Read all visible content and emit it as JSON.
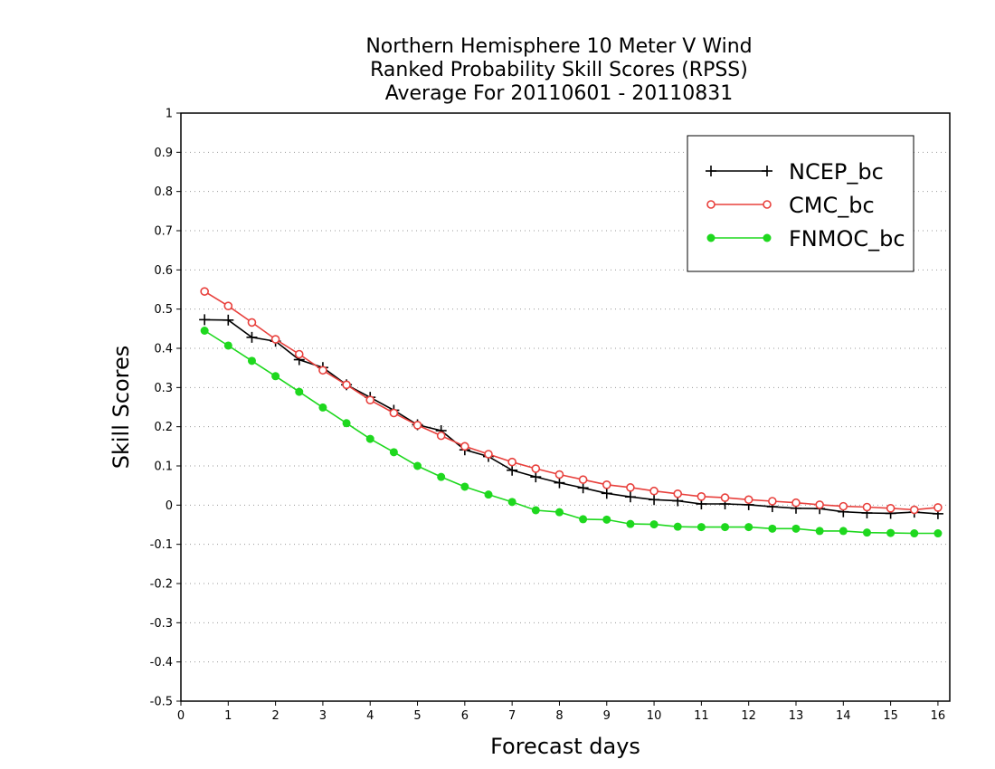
{
  "chart_data": {
    "type": "line",
    "title": [
      "Northern Hemisphere 10 Meter V Wind",
      "Ranked Probability Skill Scores (RPSS)",
      "Average For 20110601 - 20110831"
    ],
    "xlabel": "Forecast days",
    "ylabel": "Skill Scores",
    "xlim": [
      0,
      16.25
    ],
    "ylim": [
      -0.5,
      1
    ],
    "xticks": [
      "0",
      "1",
      "2",
      "3",
      "4",
      "5",
      "6",
      "7",
      "8",
      "9",
      "10",
      "11",
      "12",
      "13",
      "14",
      "15",
      "16"
    ],
    "yticks": [
      "1",
      "0.9",
      "0.8",
      "0.7",
      "0.6",
      "0.5",
      "0.4",
      "0.3",
      "0.2",
      "0.1",
      "0",
      "-0.1",
      "-0.2",
      "-0.3",
      "-0.4",
      "-0.5"
    ],
    "grid": "horizontal dotted",
    "legend_position": "top-right",
    "x": [
      0.5,
      1,
      1.5,
      2,
      2.5,
      3,
      3.5,
      4,
      4.5,
      5,
      5.5,
      6,
      6.5,
      7,
      7.5,
      8,
      8.5,
      9,
      9.5,
      10,
      10.5,
      11,
      11.5,
      12,
      12.5,
      13,
      13.5,
      14,
      14.5,
      15,
      15.5,
      16
    ],
    "series": [
      {
        "name": "NCEP_bc",
        "color": "#000000",
        "marker": "plus",
        "values": [
          0.473,
          0.472,
          0.428,
          0.418,
          0.371,
          0.351,
          0.307,
          0.275,
          0.242,
          0.205,
          0.19,
          0.141,
          0.124,
          0.089,
          0.072,
          0.057,
          0.044,
          0.03,
          0.021,
          0.014,
          0.011,
          0.003,
          0.003,
          0.001,
          -0.004,
          -0.008,
          -0.009,
          -0.017,
          -0.02,
          -0.021,
          -0.018,
          -0.022
        ]
      },
      {
        "name": "CMC_bc",
        "color": "#e8403c",
        "marker": "open-circle",
        "values": [
          0.545,
          0.508,
          0.466,
          0.423,
          0.385,
          0.344,
          0.307,
          0.268,
          0.235,
          0.204,
          0.177,
          0.15,
          0.13,
          0.11,
          0.093,
          0.078,
          0.065,
          0.052,
          0.045,
          0.036,
          0.029,
          0.022,
          0.019,
          0.014,
          0.01,
          0.006,
          0.001,
          -0.003,
          -0.005,
          -0.008,
          -0.012,
          -0.006
        ]
      },
      {
        "name": "FNMOC_bc",
        "color": "#1ed81e",
        "marker": "filled-circle",
        "values": [
          0.445,
          0.407,
          0.368,
          0.329,
          0.289,
          0.249,
          0.209,
          0.169,
          0.135,
          0.1,
          0.072,
          0.047,
          0.027,
          0.008,
          -0.013,
          -0.018,
          -0.036,
          -0.037,
          -0.048,
          -0.049,
          -0.055,
          -0.056,
          -0.056,
          -0.056,
          -0.06,
          -0.06,
          -0.066,
          -0.066,
          -0.07,
          -0.071,
          -0.072,
          -0.072
        ]
      }
    ]
  }
}
